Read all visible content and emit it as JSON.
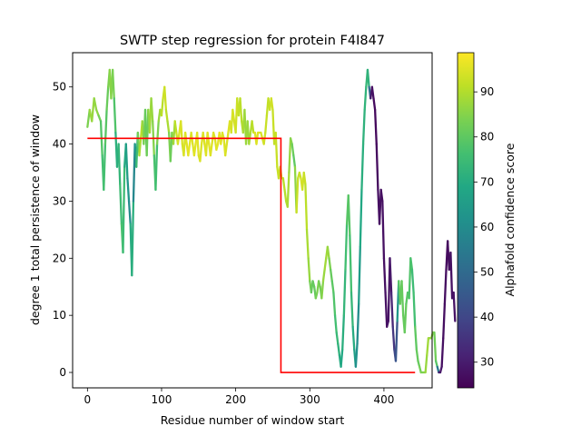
{
  "chart_data": {
    "type": "line",
    "title": "SWTP step regression for protein F4I847",
    "xlabel": "Residue number of window start",
    "ylabel": "degree 1 total persistence of window",
    "xlim": [
      -20,
      465
    ],
    "ylim": [
      -2.7,
      56
    ],
    "xticks": [
      0,
      100,
      200,
      300,
      400
    ],
    "yticks": [
      0,
      10,
      20,
      30,
      40,
      50
    ],
    "colorbar": {
      "label": "Alphafold confidence score",
      "range": [
        24.3,
        98.7
      ],
      "ticks": [
        30,
        40,
        50,
        60,
        70,
        80,
        90
      ],
      "colormap": [
        "#440154",
        "#482475",
        "#414487",
        "#355f8d",
        "#2a788e",
        "#21918c",
        "#22a884",
        "#44bf70",
        "#7ad151",
        "#bddf26",
        "#fde725"
      ]
    },
    "series": [
      {
        "kind": "persistence",
        "points": [
          [
            0,
            43,
            80
          ],
          [
            3,
            46,
            88
          ],
          [
            6,
            44,
            87
          ],
          [
            9,
            48,
            87
          ],
          [
            12,
            46,
            86
          ],
          [
            15,
            45,
            86
          ],
          [
            18,
            44,
            80
          ],
          [
            20,
            38,
            77
          ],
          [
            22,
            32,
            75
          ],
          [
            24,
            40,
            78
          ],
          [
            26,
            46,
            80
          ],
          [
            28,
            50,
            83
          ],
          [
            30,
            53,
            85
          ],
          [
            32,
            48,
            86
          ],
          [
            34,
            53,
            84
          ],
          [
            36,
            48,
            83
          ],
          [
            38,
            42,
            73
          ],
          [
            40,
            36,
            70
          ],
          [
            42,
            40,
            72
          ],
          [
            44,
            33,
            74
          ],
          [
            46,
            26,
            76
          ],
          [
            48,
            21,
            78
          ],
          [
            50,
            36,
            72
          ],
          [
            52,
            40,
            68
          ],
          [
            54,
            34,
            64
          ],
          [
            56,
            30,
            62
          ],
          [
            58,
            26,
            58
          ],
          [
            60,
            17,
            82
          ],
          [
            62,
            30,
            60
          ],
          [
            64,
            40,
            57
          ],
          [
            66,
            36,
            70
          ],
          [
            68,
            42,
            80
          ],
          [
            70,
            38,
            86
          ],
          [
            72,
            41,
            92
          ],
          [
            74,
            44,
            90
          ],
          [
            76,
            40,
            84
          ],
          [
            78,
            46,
            82
          ],
          [
            80,
            38,
            80
          ],
          [
            82,
            46,
            84
          ],
          [
            84,
            42,
            88
          ],
          [
            86,
            48,
            88
          ],
          [
            88,
            44,
            86
          ],
          [
            90,
            38,
            84
          ],
          [
            92,
            32,
            70
          ],
          [
            94,
            40,
            82
          ],
          [
            96,
            44,
            86
          ],
          [
            98,
            46,
            88
          ],
          [
            100,
            45,
            90
          ],
          [
            102,
            48,
            92
          ],
          [
            104,
            50,
            94
          ],
          [
            106,
            46,
            92
          ],
          [
            108,
            44,
            90
          ],
          [
            110,
            42,
            88
          ],
          [
            112,
            37,
            80
          ],
          [
            114,
            42,
            84
          ],
          [
            116,
            40,
            86
          ],
          [
            118,
            44,
            90
          ],
          [
            120,
            42,
            92
          ],
          [
            122,
            40,
            94
          ],
          [
            124,
            42,
            95
          ],
          [
            126,
            44,
            95
          ],
          [
            128,
            40,
            94
          ],
          [
            130,
            38,
            94
          ],
          [
            132,
            42,
            95
          ],
          [
            134,
            40,
            95
          ],
          [
            136,
            38,
            96
          ],
          [
            138,
            40,
            96
          ],
          [
            140,
            42,
            95
          ],
          [
            142,
            40,
            95
          ],
          [
            144,
            38,
            95
          ],
          [
            146,
            40,
            96
          ],
          [
            148,
            42,
            96
          ],
          [
            150,
            38,
            95
          ],
          [
            152,
            37,
            94
          ],
          [
            154,
            40,
            95
          ],
          [
            156,
            42,
            95
          ],
          [
            158,
            40,
            95
          ],
          [
            160,
            38,
            95
          ],
          [
            162,
            42,
            95
          ],
          [
            164,
            40,
            96
          ],
          [
            166,
            38,
            95
          ],
          [
            168,
            40,
            95
          ],
          [
            170,
            42,
            95
          ],
          [
            172,
            41,
            95
          ],
          [
            174,
            39,
            95
          ],
          [
            176,
            40,
            96
          ],
          [
            178,
            42,
            96
          ],
          [
            180,
            40,
            96
          ],
          [
            182,
            42,
            95
          ],
          [
            184,
            41,
            95
          ],
          [
            186,
            38,
            95
          ],
          [
            188,
            40,
            94
          ],
          [
            190,
            42,
            95
          ],
          [
            192,
            44,
            95
          ],
          [
            194,
            42,
            94
          ],
          [
            196,
            46,
            94
          ],
          [
            198,
            44,
            94
          ],
          [
            200,
            42,
            94
          ],
          [
            202,
            48,
            93
          ],
          [
            204,
            45,
            92
          ],
          [
            206,
            48,
            92
          ],
          [
            208,
            44,
            90
          ],
          [
            210,
            42,
            90
          ],
          [
            212,
            46,
            88
          ],
          [
            214,
            40,
            87
          ],
          [
            216,
            44,
            88
          ],
          [
            218,
            40,
            87
          ],
          [
            220,
            42,
            90
          ],
          [
            222,
            44,
            90
          ],
          [
            224,
            42,
            92
          ],
          [
            226,
            42,
            95
          ],
          [
            228,
            40,
            95
          ],
          [
            230,
            42,
            95
          ],
          [
            232,
            42,
            95
          ],
          [
            234,
            42,
            95
          ],
          [
            236,
            41,
            94
          ],
          [
            238,
            40,
            94
          ],
          [
            240,
            42,
            93
          ],
          [
            242,
            45,
            92
          ],
          [
            244,
            48,
            92
          ],
          [
            246,
            46,
            92
          ],
          [
            248,
            48,
            94
          ],
          [
            250,
            46,
            93
          ],
          [
            252,
            40,
            92
          ],
          [
            254,
            42,
            92
          ],
          [
            256,
            36,
            93
          ],
          [
            258,
            34,
            92
          ],
          [
            260,
            36,
            93
          ],
          [
            262,
            34,
            92
          ],
          [
            264,
            34,
            91
          ],
          [
            266,
            32,
            91
          ],
          [
            268,
            30,
            90
          ],
          [
            270,
            29,
            90
          ],
          [
            272,
            35,
            88
          ],
          [
            274,
            41,
            86
          ],
          [
            276,
            40,
            84
          ],
          [
            278,
            38,
            80
          ],
          [
            280,
            36,
            80
          ],
          [
            282,
            28,
            92
          ],
          [
            284,
            34,
            93
          ],
          [
            286,
            35,
            92
          ],
          [
            288,
            34,
            94
          ],
          [
            290,
            32,
            94
          ],
          [
            292,
            35,
            93
          ],
          [
            294,
            33,
            92
          ],
          [
            296,
            25,
            90
          ],
          [
            298,
            20,
            88
          ],
          [
            300,
            16,
            86
          ],
          [
            302,
            14,
            80
          ],
          [
            304,
            16,
            82
          ],
          [
            306,
            15,
            80
          ],
          [
            308,
            13,
            82
          ],
          [
            310,
            14,
            84
          ],
          [
            312,
            16,
            84
          ],
          [
            314,
            15,
            82
          ],
          [
            316,
            13,
            84
          ],
          [
            318,
            16,
            86
          ],
          [
            320,
            18,
            88
          ],
          [
            322,
            20,
            88
          ],
          [
            324,
            22,
            88
          ],
          [
            326,
            20,
            86
          ],
          [
            328,
            18,
            82
          ],
          [
            330,
            16,
            80
          ],
          [
            332,
            14,
            79
          ],
          [
            334,
            10,
            77
          ],
          [
            336,
            7,
            75
          ],
          [
            338,
            5,
            73
          ],
          [
            340,
            3,
            71
          ],
          [
            342,
            1,
            68
          ],
          [
            344,
            4,
            70
          ],
          [
            346,
            10,
            72
          ],
          [
            348,
            18,
            74
          ],
          [
            350,
            26,
            78
          ],
          [
            352,
            31,
            80
          ],
          [
            354,
            24,
            78
          ],
          [
            356,
            14,
            75
          ],
          [
            358,
            8,
            72
          ],
          [
            360,
            4,
            68
          ],
          [
            362,
            1,
            65
          ],
          [
            364,
            5,
            58
          ],
          [
            366,
            12,
            62
          ],
          [
            368,
            22,
            68
          ],
          [
            370,
            32,
            70
          ],
          [
            372,
            40,
            72
          ],
          [
            374,
            46,
            72
          ],
          [
            376,
            50,
            73
          ],
          [
            378,
            53,
            74
          ],
          [
            380,
            50,
            70
          ],
          [
            382,
            48,
            30
          ],
          [
            384,
            50,
            28
          ],
          [
            386,
            48,
            27
          ],
          [
            388,
            46,
            26
          ],
          [
            390,
            40,
            26
          ],
          [
            392,
            32,
            27
          ],
          [
            394,
            26,
            28
          ],
          [
            396,
            32,
            27
          ],
          [
            398,
            30,
            27
          ],
          [
            400,
            20,
            28
          ],
          [
            402,
            14,
            27
          ],
          [
            404,
            8,
            28
          ],
          [
            406,
            9,
            28
          ],
          [
            408,
            20,
            28
          ],
          [
            410,
            14,
            30
          ],
          [
            412,
            8,
            34
          ],
          [
            414,
            4,
            38
          ],
          [
            416,
            2,
            42
          ],
          [
            418,
            9,
            46
          ],
          [
            420,
            16,
            80
          ],
          [
            422,
            12,
            80
          ],
          [
            424,
            16,
            82
          ],
          [
            426,
            10,
            80
          ],
          [
            428,
            7,
            82
          ],
          [
            430,
            12,
            80
          ],
          [
            432,
            14,
            79
          ],
          [
            434,
            13,
            78
          ],
          [
            436,
            20,
            78
          ],
          [
            438,
            18,
            76
          ],
          [
            440,
            14,
            74
          ],
          [
            442,
            8,
            78
          ],
          [
            444,
            4,
            82
          ],
          [
            446,
            2,
            80
          ],
          [
            448,
            1,
            82
          ],
          [
            450,
            0,
            84
          ],
          [
            452,
            0,
            84
          ],
          [
            454,
            0,
            84
          ],
          [
            456,
            0,
            86
          ],
          [
            458,
            3,
            88
          ],
          [
            460,
            6,
            88
          ],
          [
            462,
            6,
            88
          ],
          [
            464,
            6,
            86
          ],
          [
            466,
            7,
            86
          ],
          [
            468,
            7,
            85
          ],
          [
            470,
            2,
            80
          ],
          [
            472,
            1,
            78
          ],
          [
            474,
            0,
            32
          ],
          [
            476,
            0,
            30
          ],
          [
            478,
            1,
            28
          ],
          [
            480,
            6,
            27
          ],
          [
            482,
            12,
            27
          ],
          [
            484,
            18,
            27
          ],
          [
            486,
            23,
            26
          ],
          [
            488,
            18,
            27
          ],
          [
            490,
            21,
            27
          ],
          [
            492,
            13,
            28
          ],
          [
            494,
            14,
            28
          ],
          [
            496,
            9,
            28
          ]
        ]
      },
      {
        "kind": "step",
        "color": "#ff0000",
        "points": [
          [
            0,
            41
          ],
          [
            261,
            41
          ],
          [
            261,
            0
          ],
          [
            442,
            0
          ]
        ]
      }
    ]
  }
}
